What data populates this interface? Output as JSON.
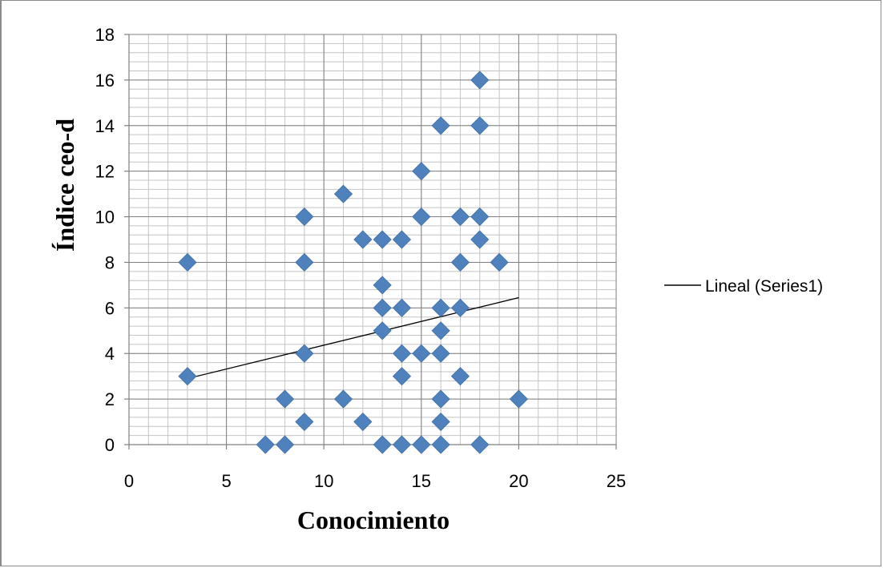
{
  "chart_data": {
    "type": "scatter",
    "xlabel": "Conocimiento",
    "ylabel": "Índice ceo-d",
    "xlim": [
      0,
      25
    ],
    "ylim": [
      0,
      18
    ],
    "x_ticks": [
      0,
      5,
      10,
      15,
      20,
      25
    ],
    "y_ticks": [
      0,
      2,
      4,
      6,
      8,
      10,
      12,
      14,
      16,
      18
    ],
    "x_minor_step": 1,
    "y_minor_step": 0.4,
    "grid": true,
    "marker_color": "#4F81BD",
    "trend_color": "#000000",
    "legend": {
      "position": "right",
      "entries": [
        "Lineal (Series1)"
      ]
    },
    "trendline": {
      "name": "Lineal (Series1)",
      "x": [
        3,
        20
      ],
      "y": [
        2.9,
        6.45
      ]
    },
    "points": [
      {
        "x": 3,
        "y": 8
      },
      {
        "x": 3,
        "y": 3
      },
      {
        "x": 7,
        "y": 0
      },
      {
        "x": 8,
        "y": 0
      },
      {
        "x": 8,
        "y": 2
      },
      {
        "x": 9,
        "y": 10
      },
      {
        "x": 9,
        "y": 8
      },
      {
        "x": 9,
        "y": 4
      },
      {
        "x": 9,
        "y": 1
      },
      {
        "x": 11,
        "y": 11
      },
      {
        "x": 11,
        "y": 2
      },
      {
        "x": 12,
        "y": 9
      },
      {
        "x": 12,
        "y": 1
      },
      {
        "x": 13,
        "y": 9
      },
      {
        "x": 13,
        "y": 7
      },
      {
        "x": 13,
        "y": 6
      },
      {
        "x": 13,
        "y": 5
      },
      {
        "x": 13,
        "y": 0
      },
      {
        "x": 14,
        "y": 9
      },
      {
        "x": 14,
        "y": 6
      },
      {
        "x": 14,
        "y": 4
      },
      {
        "x": 14,
        "y": 3
      },
      {
        "x": 14,
        "y": 0
      },
      {
        "x": 15,
        "y": 12
      },
      {
        "x": 15,
        "y": 10
      },
      {
        "x": 15,
        "y": 4
      },
      {
        "x": 15,
        "y": 0
      },
      {
        "x": 16,
        "y": 14
      },
      {
        "x": 16,
        "y": 6
      },
      {
        "x": 16,
        "y": 5
      },
      {
        "x": 16,
        "y": 4
      },
      {
        "x": 16,
        "y": 2
      },
      {
        "x": 16,
        "y": 1
      },
      {
        "x": 16,
        "y": 0
      },
      {
        "x": 17,
        "y": 10
      },
      {
        "x": 17,
        "y": 8
      },
      {
        "x": 17,
        "y": 6
      },
      {
        "x": 17,
        "y": 3
      },
      {
        "x": 18,
        "y": 16
      },
      {
        "x": 18,
        "y": 14
      },
      {
        "x": 18,
        "y": 10
      },
      {
        "x": 18,
        "y": 9
      },
      {
        "x": 18,
        "y": 0
      },
      {
        "x": 19,
        "y": 8
      },
      {
        "x": 20,
        "y": 2
      }
    ]
  }
}
